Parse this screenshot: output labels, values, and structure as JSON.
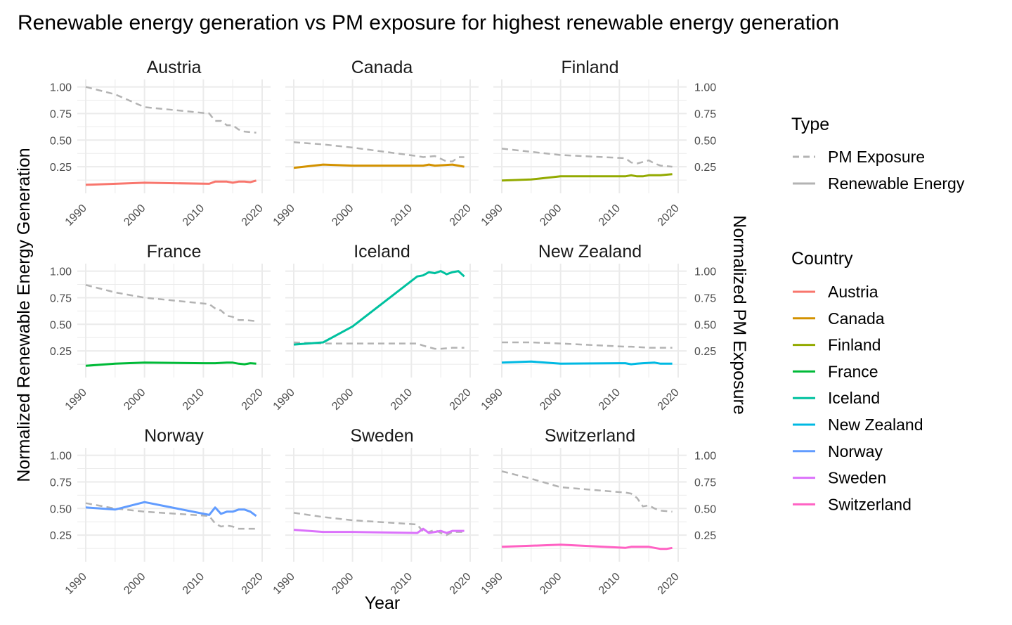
{
  "chart_data": {
    "type": "line",
    "title": "Renewable energy generation vs PM exposure for highest renewable energy generation",
    "xlabel": "Year",
    "ylabel": "Normalized Renewable Energy Generation",
    "ylabel_secondary": "Normalized PM Exposure",
    "xlim": [
      1990,
      2020
    ],
    "ylim": [
      0,
      1
    ],
    "x_ticks": [
      "1990",
      "2000",
      "2010",
      "2020"
    ],
    "y_ticks": [
      "0.25",
      "0.50",
      "0.75",
      "1.00"
    ],
    "grid": true,
    "legend_type": {
      "title": "Type",
      "items": [
        {
          "label": "PM Exposure",
          "style": "dashed",
          "color": "#b3b3b3"
        },
        {
          "label": "Renewable Energy",
          "style": "solid",
          "color": "#b3b3b3"
        }
      ]
    },
    "legend_country": {
      "title": "Country",
      "items": [
        {
          "label": "Austria",
          "color": "#F8766D"
        },
        {
          "label": "Canada",
          "color": "#D39200"
        },
        {
          "label": "Finland",
          "color": "#93AA00"
        },
        {
          "label": "France",
          "color": "#00BA38"
        },
        {
          "label": "Iceland",
          "color": "#00C19F"
        },
        {
          "label": "New Zealand",
          "color": "#00B9E3"
        },
        {
          "label": "Norway",
          "color": "#619CFF"
        },
        {
          "label": "Sweden",
          "color": "#DB72FB"
        },
        {
          "label": "Switzerland",
          "color": "#FF61C3"
        }
      ]
    },
    "pm_color": "#b3b3b3",
    "panels": [
      {
        "country": "Austria",
        "renewable": [
          [
            1990,
            0.08
          ],
          [
            2000,
            0.1
          ],
          [
            2011,
            0.09
          ],
          [
            2012,
            0.11
          ],
          [
            2014,
            0.11
          ],
          [
            2015,
            0.1
          ],
          [
            2016,
            0.11
          ],
          [
            2017,
            0.11
          ],
          [
            2018,
            0.105
          ],
          [
            2019,
            0.12
          ]
        ],
        "pm": [
          [
            1990,
            1.0
          ],
          [
            1995,
            0.93
          ],
          [
            2000,
            0.81
          ],
          [
            2011,
            0.75
          ],
          [
            2012,
            0.68
          ],
          [
            2013,
            0.68
          ],
          [
            2014,
            0.64
          ],
          [
            2015,
            0.64
          ],
          [
            2016,
            0.6
          ],
          [
            2017,
            0.58
          ],
          [
            2019,
            0.57
          ]
        ]
      },
      {
        "country": "Canada",
        "renewable": [
          [
            1990,
            0.24
          ],
          [
            1995,
            0.27
          ],
          [
            2000,
            0.26
          ],
          [
            2011,
            0.26
          ],
          [
            2012,
            0.26
          ],
          [
            2013,
            0.27
          ],
          [
            2014,
            0.26
          ],
          [
            2017,
            0.27
          ],
          [
            2019,
            0.25
          ]
        ],
        "pm": [
          [
            1990,
            0.48
          ],
          [
            1995,
            0.46
          ],
          [
            2000,
            0.43
          ],
          [
            2011,
            0.35
          ],
          [
            2012,
            0.34
          ],
          [
            2014,
            0.35
          ],
          [
            2016,
            0.3
          ],
          [
            2017,
            0.3
          ],
          [
            2018,
            0.34
          ],
          [
            2019,
            0.34
          ]
        ]
      },
      {
        "country": "Finland",
        "renewable": [
          [
            1990,
            0.12
          ],
          [
            1995,
            0.13
          ],
          [
            2000,
            0.16
          ],
          [
            2011,
            0.16
          ],
          [
            2012,
            0.17
          ],
          [
            2013,
            0.16
          ],
          [
            2014,
            0.16
          ],
          [
            2015,
            0.17
          ],
          [
            2017,
            0.17
          ],
          [
            2019,
            0.18
          ]
        ],
        "pm": [
          [
            1990,
            0.42
          ],
          [
            2000,
            0.36
          ],
          [
            2011,
            0.33
          ],
          [
            2012,
            0.29
          ],
          [
            2013,
            0.28
          ],
          [
            2015,
            0.31
          ],
          [
            2016,
            0.28
          ],
          [
            2017,
            0.26
          ],
          [
            2019,
            0.25
          ]
        ]
      },
      {
        "country": "France",
        "renewable": [
          [
            1990,
            0.11
          ],
          [
            1995,
            0.13
          ],
          [
            2000,
            0.14
          ],
          [
            2010,
            0.135
          ],
          [
            2012,
            0.135
          ],
          [
            2014,
            0.14
          ],
          [
            2015,
            0.14
          ],
          [
            2016,
            0.13
          ],
          [
            2017,
            0.125
          ],
          [
            2018,
            0.135
          ],
          [
            2019,
            0.13
          ]
        ],
        "pm": [
          [
            1990,
            0.87
          ],
          [
            1995,
            0.8
          ],
          [
            2000,
            0.75
          ],
          [
            2011,
            0.69
          ],
          [
            2012,
            0.65
          ],
          [
            2013,
            0.63
          ],
          [
            2014,
            0.58
          ],
          [
            2015,
            0.57
          ],
          [
            2016,
            0.54
          ],
          [
            2017,
            0.54
          ],
          [
            2019,
            0.53
          ]
        ]
      },
      {
        "country": "Iceland",
        "renewable": [
          [
            1990,
            0.31
          ],
          [
            1995,
            0.33
          ],
          [
            2000,
            0.48
          ],
          [
            2011,
            0.95
          ],
          [
            2012,
            0.96
          ],
          [
            2013,
            0.99
          ],
          [
            2014,
            0.98
          ],
          [
            2015,
            1.0
          ],
          [
            2016,
            0.97
          ],
          [
            2017,
            0.99
          ],
          [
            2018,
            1.0
          ],
          [
            2019,
            0.95
          ]
        ],
        "pm": [
          [
            1990,
            0.33
          ],
          [
            1995,
            0.32
          ],
          [
            2000,
            0.32
          ],
          [
            2011,
            0.32
          ],
          [
            2012,
            0.3
          ],
          [
            2014,
            0.27
          ],
          [
            2015,
            0.27
          ],
          [
            2017,
            0.28
          ],
          [
            2019,
            0.28
          ]
        ]
      },
      {
        "country": "New Zealand",
        "renewable": [
          [
            1990,
            0.14
          ],
          [
            1995,
            0.15
          ],
          [
            2000,
            0.13
          ],
          [
            2010,
            0.135
          ],
          [
            2011,
            0.135
          ],
          [
            2012,
            0.125
          ],
          [
            2013,
            0.13
          ],
          [
            2014,
            0.135
          ],
          [
            2016,
            0.14
          ],
          [
            2017,
            0.13
          ],
          [
            2019,
            0.13
          ]
        ],
        "pm": [
          [
            1990,
            0.33
          ],
          [
            1995,
            0.33
          ],
          [
            2000,
            0.32
          ],
          [
            2011,
            0.29
          ],
          [
            2012,
            0.29
          ],
          [
            2015,
            0.28
          ],
          [
            2017,
            0.28
          ],
          [
            2019,
            0.28
          ]
        ]
      },
      {
        "country": "Norway",
        "renewable": [
          [
            1990,
            0.51
          ],
          [
            1995,
            0.49
          ],
          [
            2000,
            0.56
          ],
          [
            2011,
            0.44
          ],
          [
            2012,
            0.51
          ],
          [
            2013,
            0.45
          ],
          [
            2014,
            0.47
          ],
          [
            2015,
            0.47
          ],
          [
            2016,
            0.49
          ],
          [
            2017,
            0.49
          ],
          [
            2018,
            0.47
          ],
          [
            2019,
            0.43
          ]
        ],
        "pm": [
          [
            1990,
            0.55
          ],
          [
            1995,
            0.5
          ],
          [
            2000,
            0.47
          ],
          [
            2011,
            0.43
          ],
          [
            2012,
            0.36
          ],
          [
            2013,
            0.33
          ],
          [
            2014,
            0.34
          ],
          [
            2015,
            0.33
          ],
          [
            2016,
            0.31
          ],
          [
            2019,
            0.31
          ]
        ]
      },
      {
        "country": "Sweden",
        "renewable": [
          [
            1990,
            0.3
          ],
          [
            1995,
            0.28
          ],
          [
            2000,
            0.28
          ],
          [
            2011,
            0.27
          ],
          [
            2012,
            0.31
          ],
          [
            2013,
            0.27
          ],
          [
            2014,
            0.28
          ],
          [
            2015,
            0.29
          ],
          [
            2016,
            0.27
          ],
          [
            2017,
            0.29
          ],
          [
            2019,
            0.29
          ]
        ],
        "pm": [
          [
            1990,
            0.46
          ],
          [
            1995,
            0.42
          ],
          [
            2000,
            0.39
          ],
          [
            2011,
            0.35
          ],
          [
            2012,
            0.28
          ],
          [
            2013,
            0.28
          ],
          [
            2014,
            0.3
          ],
          [
            2015,
            0.27
          ],
          [
            2016,
            0.25
          ],
          [
            2017,
            0.28
          ],
          [
            2019,
            0.28
          ]
        ]
      },
      {
        "country": "Switzerland",
        "renewable": [
          [
            1990,
            0.14
          ],
          [
            1995,
            0.15
          ],
          [
            2000,
            0.16
          ],
          [
            2011,
            0.13
          ],
          [
            2012,
            0.14
          ],
          [
            2014,
            0.14
          ],
          [
            2015,
            0.14
          ],
          [
            2016,
            0.13
          ],
          [
            2017,
            0.12
          ],
          [
            2018,
            0.12
          ],
          [
            2019,
            0.13
          ]
        ],
        "pm": [
          [
            1990,
            0.85
          ],
          [
            1995,
            0.78
          ],
          [
            2000,
            0.7
          ],
          [
            2011,
            0.65
          ],
          [
            2012,
            0.64
          ],
          [
            2013,
            0.6
          ],
          [
            2014,
            0.52
          ],
          [
            2015,
            0.53
          ],
          [
            2016,
            0.5
          ],
          [
            2017,
            0.48
          ],
          [
            2019,
            0.47
          ]
        ]
      }
    ]
  }
}
